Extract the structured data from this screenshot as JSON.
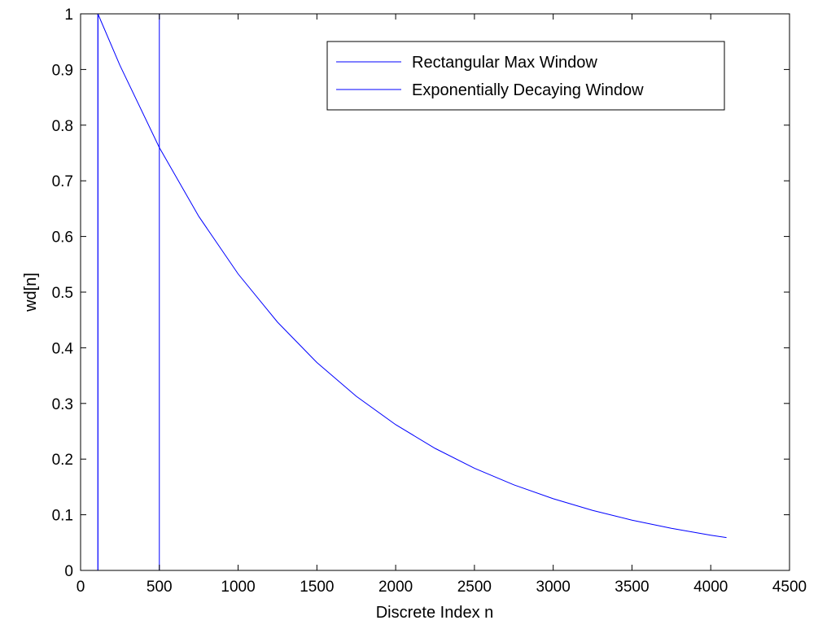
{
  "chart_data": {
    "type": "line",
    "xlabel": "Discrete Index n",
    "ylabel": "wd[n]",
    "xlim": [
      0,
      4500
    ],
    "ylim": [
      0,
      1
    ],
    "x_ticks": [
      0,
      500,
      1000,
      1500,
      2000,
      2500,
      3000,
      3500,
      4000,
      4500
    ],
    "y_ticks": [
      0,
      0.1,
      0.2,
      0.3,
      0.4,
      0.5,
      0.6,
      0.7,
      0.8,
      0.9,
      1
    ],
    "x_tick_labels": [
      "0",
      "500",
      "1000",
      "1500",
      "2000",
      "2500",
      "3000",
      "3500",
      "4000",
      "4500"
    ],
    "y_tick_labels": [
      "0",
      "0.1",
      "0.2",
      "0.3",
      "0.4",
      "0.5",
      "0.6",
      "0.7",
      "0.8",
      "0.9",
      "1"
    ],
    "grid": false,
    "legend_position": "top-right",
    "line_color": "#0000ff",
    "series": [
      {
        "name": "Rectangular Max Window",
        "x": [
          0,
          110,
          110,
          500,
          500,
          4100
        ],
        "y": [
          0,
          0,
          1,
          1,
          0,
          0
        ]
      },
      {
        "name": "Exponentially Decaying Window",
        "x": [
          0,
          110,
          110,
          250,
          500,
          750,
          1000,
          1250,
          1500,
          1750,
          2000,
          2250,
          2500,
          2750,
          3000,
          3250,
          3500,
          3750,
          4000,
          4100
        ],
        "y": [
          0,
          0,
          1,
          0.9073,
          0.7597,
          0.6362,
          0.5327,
          0.4461,
          0.3735,
          0.3128,
          0.2619,
          0.2193,
          0.1836,
          0.1538,
          0.1288,
          0.1078,
          0.0903,
          0.0756,
          0.0633,
          0.059
        ]
      }
    ]
  }
}
